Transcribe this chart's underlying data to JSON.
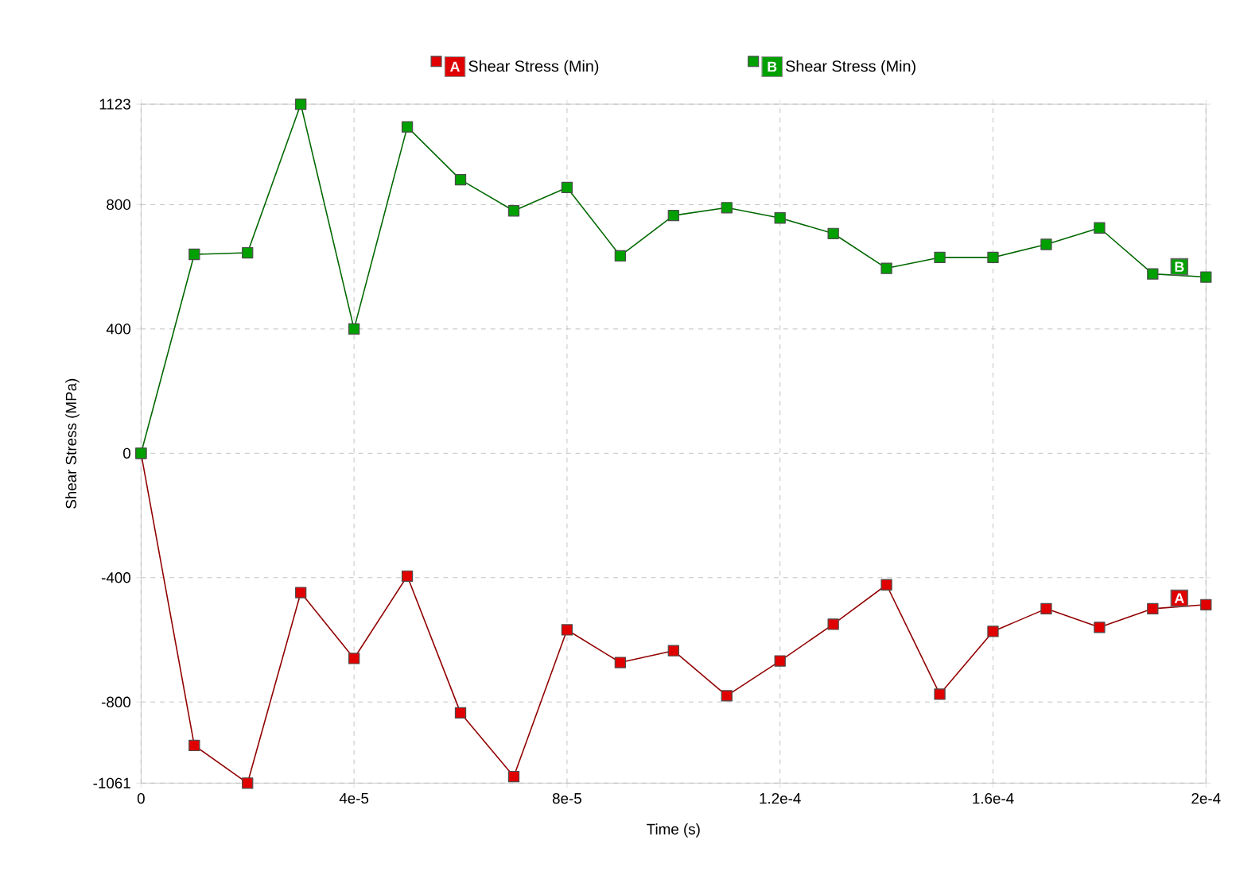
{
  "chart_data": {
    "type": "line",
    "xlabel": "Time (s)",
    "ylabel": "Shear Stress (MPa)",
    "x": [
      0,
      1e-05,
      2e-05,
      3e-05,
      4e-05,
      5e-05,
      6e-05,
      7e-05,
      8e-05,
      9e-05,
      0.0001,
      0.00011,
      0.00012,
      0.00013,
      0.00014,
      0.00015,
      0.00016,
      0.00017,
      0.00018,
      0.00019,
      0.0002
    ],
    "series": [
      {
        "name": "Shear Stress (Min)",
        "color": "#e00000",
        "values": [
          0,
          -940,
          -1061,
          -448,
          -660,
          -395,
          -835,
          -1040,
          -568,
          -673,
          -635,
          -780,
          -668,
          -550,
          -423,
          -775,
          -573,
          -500,
          -560,
          -500,
          -487
        ]
      },
      {
        "name": "Shear Stress (Min)",
        "color": "#00a000",
        "values": [
          0,
          640,
          645,
          1123,
          400,
          1050,
          880,
          780,
          855,
          635,
          765,
          790,
          757,
          707,
          595,
          630,
          630,
          672,
          725,
          577,
          567
        ]
      }
    ],
    "annotations": [
      {
        "text": "A",
        "x": 0.000195,
        "y": -494
      },
      {
        "text": "B",
        "x": 0.000195,
        "y": 572
      }
    ],
    "xlim": [
      0,
      0.0002
    ],
    "ylim": [
      -1061,
      1123
    ],
    "xticks": [
      0,
      {
        "value": 4e-05,
        "label": "4e-5"
      },
      {
        "value": 8e-05,
        "label": "8e-5"
      },
      {
        "value": 0.00012,
        "label": "1.2e-4"
      },
      {
        "value": 0.00016,
        "label": "1.6e-4"
      },
      {
        "value": 0.0002,
        "label": "2e-4"
      }
    ],
    "yticks": [
      -1061,
      -800,
      -400,
      0,
      400,
      800,
      1123
    ],
    "grid": true,
    "legend": "top",
    "marker": "square",
    "line_style": "solid"
  }
}
